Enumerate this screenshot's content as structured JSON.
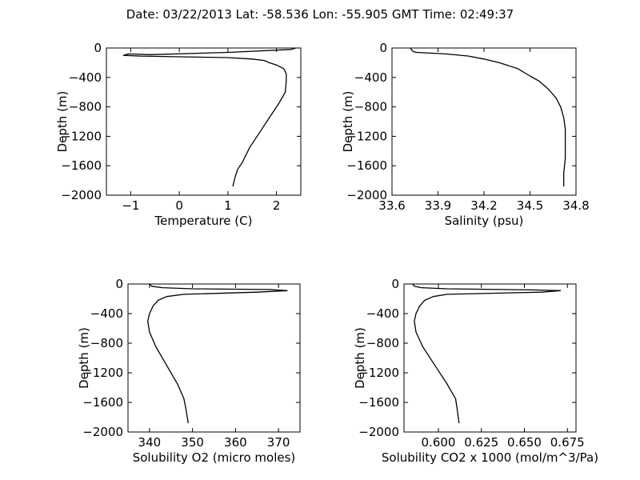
{
  "figure": {
    "title": "Date: 03/22/2013  Lat:  -58.536 Lon:  -55.905  GMT Time: 02:49:37"
  },
  "chart_data": [
    {
      "type": "line",
      "xlabel": "Temperature (C)",
      "ylabel": "Depth (m)",
      "xlim": [
        -1.5,
        2.5
      ],
      "ylim": [
        -2000,
        0
      ],
      "xticks": [
        -1,
        0,
        1,
        2
      ],
      "xtick_labels": [
        "−1",
        "0",
        "1",
        "2"
      ],
      "yticks": [
        0,
        -400,
        -800,
        -1200,
        -1600,
        -2000
      ],
      "ytick_labels": [
        "0",
        "−400",
        "−800",
        "−1200",
        "−1600",
        "−2000"
      ],
      "grid": false,
      "series": [
        {
          "x": [
            2.4,
            2.3,
            1.0,
            -0.6,
            -1.05,
            -1.15,
            -0.8,
            1.0,
            1.5,
            1.75,
            1.85,
            2.0,
            2.15,
            2.2,
            2.2,
            2.18,
            2.05,
            1.85,
            1.65,
            1.45,
            1.3,
            1.2,
            1.15,
            1.1
          ],
          "y": [
            0,
            -20,
            -60,
            -90,
            -80,
            -100,
            -110,
            -130,
            -150,
            -170,
            -200,
            -230,
            -280,
            -350,
            -450,
            -600,
            -750,
            -950,
            -1150,
            -1350,
            -1550,
            -1650,
            -1750,
            -1880
          ]
        }
      ]
    },
    {
      "type": "line",
      "xlabel": "Salinity (psu)",
      "ylabel": "Depth (m)",
      "xlim": [
        33.6,
        34.8
      ],
      "ylim": [
        -2000,
        0
      ],
      "xticks": [
        33.6,
        33.9,
        34.2,
        34.5,
        34.8
      ],
      "xtick_labels": [
        "33.6",
        "33.9",
        "34.2",
        "34.5",
        "34.8"
      ],
      "yticks": [
        0,
        -400,
        -800,
        -1200,
        -1600,
        -2000
      ],
      "ytick_labels": [
        "0",
        "−400",
        "−800",
        "−1200",
        "−1600",
        "−2000"
      ],
      "grid": false,
      "series": [
        {
          "x": [
            33.72,
            33.73,
            33.74,
            33.76,
            33.95,
            34.1,
            34.2,
            34.3,
            34.42,
            34.5,
            34.56,
            34.62,
            34.67,
            34.7,
            34.72,
            34.73,
            34.73,
            34.73,
            34.72,
            34.72
          ],
          "y": [
            0,
            -30,
            -50,
            -60,
            -80,
            -110,
            -150,
            -200,
            -280,
            -380,
            -450,
            -560,
            -680,
            -800,
            -950,
            -1100,
            -1300,
            -1500,
            -1700,
            -1880
          ]
        }
      ]
    },
    {
      "type": "line",
      "xlabel": "Solubility O2 (micro moles)",
      "ylabel": "Depth (m)",
      "xlim": [
        335,
        375
      ],
      "ylim": [
        -2000,
        0
      ],
      "xticks": [
        340,
        350,
        360,
        370
      ],
      "xtick_labels": [
        "340",
        "350",
        "360",
        "370"
      ],
      "yticks": [
        0,
        -400,
        -800,
        -1200,
        -1600,
        -2000
      ],
      "ytick_labels": [
        "0",
        "−400",
        "−800",
        "−1200",
        "−1600",
        "−2000"
      ],
      "grid": false,
      "series": [
        {
          "x": [
            340,
            340.5,
            343,
            350,
            368,
            372,
            365,
            348,
            344,
            342,
            340.8,
            340,
            339.6,
            340,
            341.5,
            344,
            346.5,
            348,
            348.5,
            349
          ],
          "y": [
            0,
            -30,
            -50,
            -65,
            -75,
            -90,
            -110,
            -140,
            -170,
            -220,
            -300,
            -400,
            -500,
            -650,
            -850,
            -1100,
            -1350,
            -1550,
            -1700,
            -1880
          ]
        }
      ]
    },
    {
      "type": "line",
      "xlabel": "Solubility CO2 x 1000 (mol/m^3/Pa)",
      "ylabel": "Depth (m)",
      "xlim": [
        0.58,
        0.68
      ],
      "ylim": [
        -2000,
        0
      ],
      "xticks": [
        0.6,
        0.625,
        0.65,
        0.675
      ],
      "xtick_labels": [
        "0.600",
        "0.625",
        "0.650",
        "0.675"
      ],
      "yticks": [
        0,
        -400,
        -800,
        -1200,
        -1600,
        -2000
      ],
      "ytick_labels": [
        "0",
        "−400",
        "−800",
        "−1200",
        "−1600",
        "−2000"
      ],
      "grid": false,
      "series": [
        {
          "x": [
            0.585,
            0.586,
            0.59,
            0.605,
            0.655,
            0.671,
            0.66,
            0.605,
            0.597,
            0.592,
            0.589,
            0.587,
            0.586,
            0.587,
            0.591,
            0.598,
            0.605,
            0.61,
            0.611,
            0.612
          ],
          "y": [
            0,
            -30,
            -50,
            -65,
            -80,
            -90,
            -110,
            -140,
            -170,
            -220,
            -300,
            -400,
            -500,
            -650,
            -850,
            -1100,
            -1350,
            -1550,
            -1700,
            -1880
          ]
        }
      ]
    }
  ]
}
